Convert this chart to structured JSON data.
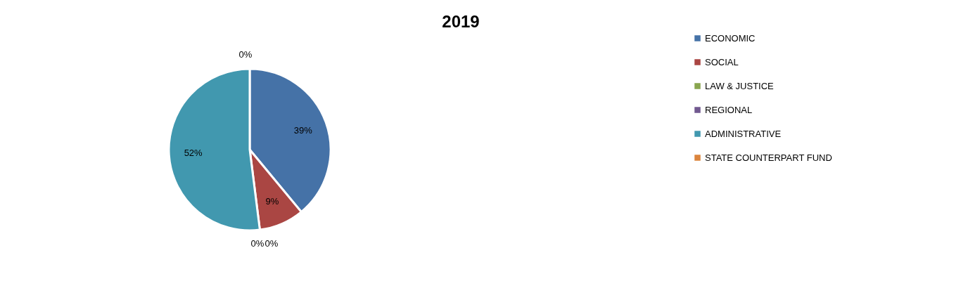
{
  "chart_data": {
    "type": "pie",
    "title": "2019",
    "categories": [
      "ECONOMIC",
      "SOCIAL",
      "LAW & JUSTICE",
      "REGIONAL",
      "ADMINISTRATIVE",
      "STATE COUNTERPART FUND"
    ],
    "values": [
      39,
      9,
      0,
      0,
      52,
      0
    ],
    "value_labels": [
      "39%",
      "9%",
      "0%",
      "0%",
      "52%",
      "0%"
    ],
    "colors": [
      "#4572a7",
      "#aa4643",
      "#89a54e",
      "#71588f",
      "#4198af",
      "#db843d"
    ],
    "legend": "right"
  }
}
